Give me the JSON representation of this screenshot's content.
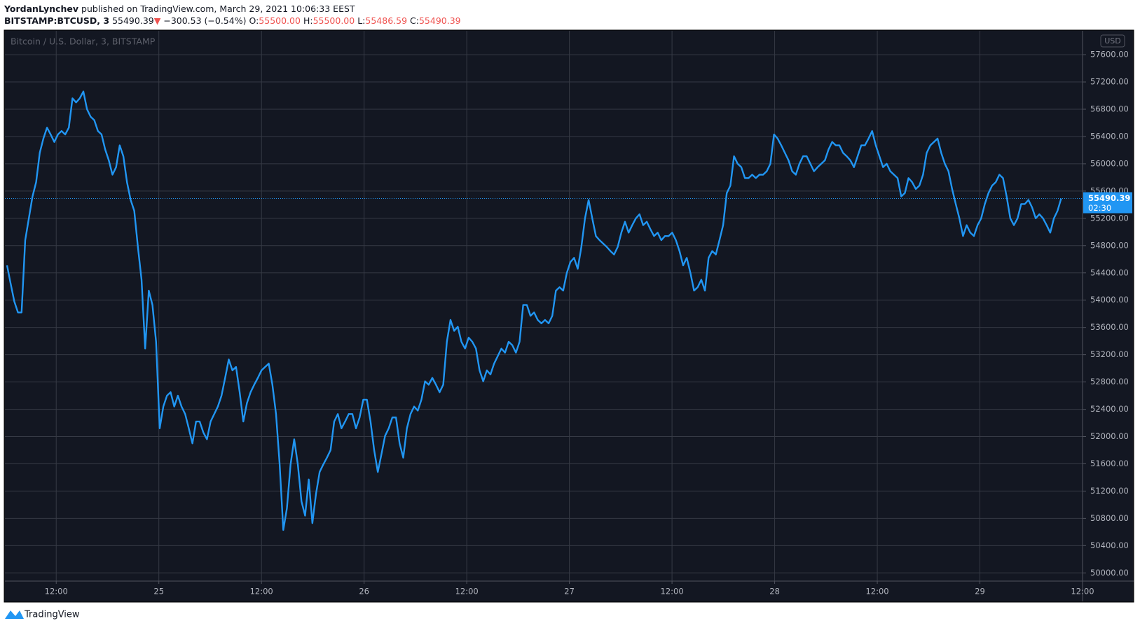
{
  "header": {
    "author": "YordanLynchev",
    "published": "published on TradingView.com, March 29, 2021 10:06:33 EEST",
    "ticker": "BITSTAMP:BTCUSD, 3",
    "price": "55490.39",
    "arrow": "▼",
    "change": "−300.53 (−0.54%)",
    "ohlc": [
      {
        "label": "O:",
        "value": "55500.00"
      },
      {
        "label": "H:",
        "value": "55500.00"
      },
      {
        "label": "L:",
        "value": "55486.59"
      },
      {
        "label": "C:",
        "value": "55490.39"
      }
    ]
  },
  "footer": {
    "brand": "TradingView"
  },
  "chart_data": {
    "type": "line",
    "title": "Bitcoin / U.S. Dollar, 3, BITSTAMP",
    "currency": "USD",
    "countdown": "02:30",
    "background": "#131722",
    "grid": true,
    "grid_color": "#363a45",
    "xlim": [
      6,
      132
    ],
    "xticks": [
      {
        "value": 12,
        "label": "12:00"
      },
      {
        "value": 24,
        "label": "25"
      },
      {
        "value": 36,
        "label": "12:00"
      },
      {
        "value": 48,
        "label": "26"
      },
      {
        "value": 60,
        "label": "12:00"
      },
      {
        "value": 72,
        "label": "27"
      },
      {
        "value": 84,
        "label": "12:00"
      },
      {
        "value": 96,
        "label": "28"
      },
      {
        "value": 108,
        "label": "12:00"
      },
      {
        "value": 120,
        "label": "29"
      },
      {
        "value": 132,
        "label": "12:00"
      }
    ],
    "ylim": [
      49880,
      57950
    ],
    "yticks": [
      {
        "value": 50000,
        "label": "50000.00"
      },
      {
        "value": 50400,
        "label": "50400.00"
      },
      {
        "value": 50800,
        "label": "50800.00"
      },
      {
        "value": 51200,
        "label": "51200.00"
      },
      {
        "value": 51600,
        "label": "51600.00"
      },
      {
        "value": 52000,
        "label": "52000.00"
      },
      {
        "value": 52400,
        "label": "52400.00"
      },
      {
        "value": 52800,
        "label": "52800.00"
      },
      {
        "value": 53200,
        "label": "53200.00"
      },
      {
        "value": 53600,
        "label": "53600.00"
      },
      {
        "value": 54000,
        "label": "54000.00"
      },
      {
        "value": 54400,
        "label": "54400.00"
      },
      {
        "value": 54800,
        "label": "54800.00"
      },
      {
        "value": 55200,
        "label": "55200.00"
      },
      {
        "value": 55600,
        "label": "55600.00"
      },
      {
        "value": 56000,
        "label": "56000.00"
      },
      {
        "value": 56400,
        "label": "56400.00"
      },
      {
        "value": 56800,
        "label": "56800.00"
      },
      {
        "value": 57200,
        "label": "57200.00"
      },
      {
        "value": 57600,
        "label": "57600.00"
      }
    ],
    "x": [
      6.25,
      6.675,
      7.1,
      7.525,
      7.95,
      8.375,
      8.8,
      9.225,
      9.65,
      10.075,
      10.5,
      10.925,
      11.35,
      11.775,
      12.2,
      12.625,
      13.05,
      13.475,
      13.9,
      14.325,
      14.75,
      15.175,
      15.6,
      16.025,
      16.45,
      16.875,
      17.3,
      17.725,
      18.15,
      18.575,
      19,
      19.425,
      19.85,
      20.275,
      20.7,
      21.125,
      21.55,
      21.975,
      22.4,
      22.825,
      23.25,
      23.675,
      24.1,
      24.525,
      24.95,
      25.375,
      25.8,
      26.225,
      26.65,
      27.075,
      27.5,
      27.925,
      28.35,
      28.775,
      29.2,
      29.625,
      30.05,
      30.475,
      30.9,
      31.325,
      31.75,
      32.175,
      32.6,
      33.025,
      33.45,
      33.875,
      34.3,
      34.725,
      35.15,
      35.575,
      36,
      36.425,
      36.85,
      37.275,
      37.7,
      38.125,
      38.55,
      38.975,
      39.4,
      39.825,
      40.25,
      40.675,
      41.1,
      41.525,
      41.95,
      42.375,
      42.8,
      43.225,
      43.65,
      44.075,
      44.5,
      44.925,
      45.35,
      45.775,
      46.2,
      46.625,
      47.05,
      47.475,
      47.9,
      48.325,
      48.75,
      49.175,
      49.6,
      50.025,
      50.45,
      50.875,
      51.3,
      51.725,
      52.15,
      52.575,
      53,
      53.425,
      53.85,
      54.275,
      54.7,
      55.125,
      55.55,
      55.975,
      56.4,
      56.825,
      57.25,
      57.675,
      58.1,
      58.525,
      58.95,
      59.375,
      59.8,
      60.225,
      60.65,
      61.075,
      61.5,
      61.925,
      62.35,
      62.775,
      63.2,
      63.625,
      64.05,
      64.475,
      64.9,
      65.325,
      65.75,
      66.175,
      66.6,
      67.025,
      67.45,
      67.875,
      68.3,
      68.725,
      69.15,
      69.575,
      70,
      70.425,
      70.85,
      71.275,
      71.7,
      72.125,
      72.55,
      72.975,
      73.4,
      73.825,
      74.25,
      74.675,
      75.1,
      75.525,
      75.95,
      76.375,
      76.8,
      77.225,
      77.65,
      78.075,
      78.5,
      78.925,
      79.35,
      79.775,
      80.2,
      80.625,
      81.05,
      81.475,
      81.9,
      82.325,
      82.75,
      83.175,
      83.6,
      84.025,
      84.45,
      84.875,
      85.3,
      85.725,
      86.15,
      86.575,
      87,
      87.425,
      87.85,
      88.275,
      88.7,
      89.125,
      89.55,
      89.975,
      90.4,
      90.825,
      91.25,
      91.675,
      92.1,
      92.525,
      92.95,
      93.375,
      93.8,
      94.225,
      94.65,
      95.075,
      95.5,
      95.925,
      96.35,
      96.775,
      97.2,
      97.625,
      98.05,
      98.475,
      98.9,
      99.325,
      99.75,
      100.175,
      100.6,
      101.025,
      101.45,
      101.875,
      102.3,
      102.725,
      103.15,
      103.575,
      104,
      104.425,
      104.85,
      105.275,
      105.7,
      106.125,
      106.55,
      106.975,
      107.4,
      107.825,
      108.25,
      108.675,
      109.1,
      109.525,
      109.95,
      110.375,
      110.8,
      111.225,
      111.65,
      112.075,
      112.5,
      112.925,
      113.35,
      113.775,
      114.2,
      114.625,
      115.05,
      115.475,
      115.9,
      116.325,
      116.75,
      117.175,
      117.6,
      118.025,
      118.45,
      118.875,
      119.3,
      119.725,
      120.15,
      120.575,
      121,
      121.425,
      121.85,
      122.275,
      122.7,
      123.125,
      123.55,
      123.975,
      124.4,
      124.825,
      125.25,
      125.675,
      126.1,
      126.525,
      126.95,
      127.375,
      127.8,
      128.225,
      128.65,
      129.075,
      129.5
    ],
    "series": [
      {
        "name": "BITSTAMP:BTCUSD",
        "color": "#2196f3",
        "values": [
          54510,
          54240,
          53980,
          53820,
          53820,
          54880,
          55200,
          55520,
          55730,
          56160,
          56370,
          56530,
          56430,
          56320,
          56430,
          56480,
          56430,
          56530,
          56960,
          56900,
          56960,
          57060,
          56800,
          56690,
          56640,
          56480,
          56430,
          56210,
          56050,
          55840,
          55950,
          56270,
          56110,
          55730,
          55470,
          55310,
          54780,
          54300,
          53290,
          54140,
          53930,
          53390,
          52120,
          52440,
          52600,
          52650,
          52440,
          52600,
          52440,
          52330,
          52120,
          51900,
          52220,
          52220,
          52060,
          51960,
          52220,
          52330,
          52440,
          52600,
          52860,
          53130,
          52970,
          53020,
          52650,
          52220,
          52490,
          52650,
          52760,
          52860,
          52970,
          53020,
          53070,
          52760,
          52330,
          51590,
          50630,
          50950,
          51590,
          51960,
          51590,
          51050,
          50840,
          51370,
          50730,
          51160,
          51480,
          51590,
          51690,
          51800,
          52220,
          52330,
          52120,
          52220,
          52330,
          52330,
          52120,
          52280,
          52540,
          52540,
          52220,
          51800,
          51480,
          51740,
          52010,
          52120,
          52280,
          52280,
          51900,
          51690,
          52120,
          52330,
          52440,
          52380,
          52540,
          52810,
          52760,
          52860,
          52760,
          52650,
          52760,
          53390,
          53710,
          53550,
          53610,
          53390,
          53290,
          53450,
          53390,
          53290,
          52970,
          52810,
          52970,
          52910,
          53070,
          53180,
          53290,
          53230,
          53390,
          53340,
          53230,
          53390,
          53930,
          53930,
          53770,
          53820,
          53710,
          53660,
          53710,
          53660,
          53770,
          54140,
          54190,
          54140,
          54400,
          54560,
          54620,
          54460,
          54780,
          55200,
          55470,
          55200,
          54940,
          54880,
          54830,
          54780,
          54720,
          54670,
          54780,
          54990,
          55150,
          54990,
          55100,
          55200,
          55260,
          55100,
          55150,
          55040,
          54940,
          54990,
          54880,
          54940,
          54940,
          54990,
          54880,
          54720,
          54510,
          54620,
          54400,
          54140,
          54190,
          54300,
          54140,
          54620,
          54720,
          54670,
          54880,
          55100,
          55570,
          55680,
          56110,
          56000,
          55950,
          55790,
          55790,
          55840,
          55790,
          55840,
          55840,
          55890,
          56000,
          56430,
          56370,
          56270,
          56160,
          56050,
          55890,
          55840,
          56000,
          56110,
          56110,
          56000,
          55890,
          55950,
          56000,
          56050,
          56210,
          56320,
          56270,
          56270,
          56160,
          56110,
          56050,
          55950,
          56110,
          56270,
          56270,
          56370,
          56480,
          56270,
          56110,
          55950,
          56000,
          55890,
          55840,
          55790,
          55520,
          55570,
          55790,
          55730,
          55630,
          55680,
          55840,
          56160,
          56270,
          56320,
          56370,
          56160,
          56000,
          55890,
          55630,
          55410,
          55200,
          54940,
          55100,
          54990,
          54940,
          55100,
          55200,
          55410,
          55570,
          55680,
          55730,
          55840,
          55790,
          55520,
          55200,
          55100,
          55200,
          55410,
          55410,
          55470,
          55360,
          55200,
          55260,
          55200,
          55100,
          54990,
          55200,
          55310,
          55490.39
        ]
      }
    ]
  }
}
